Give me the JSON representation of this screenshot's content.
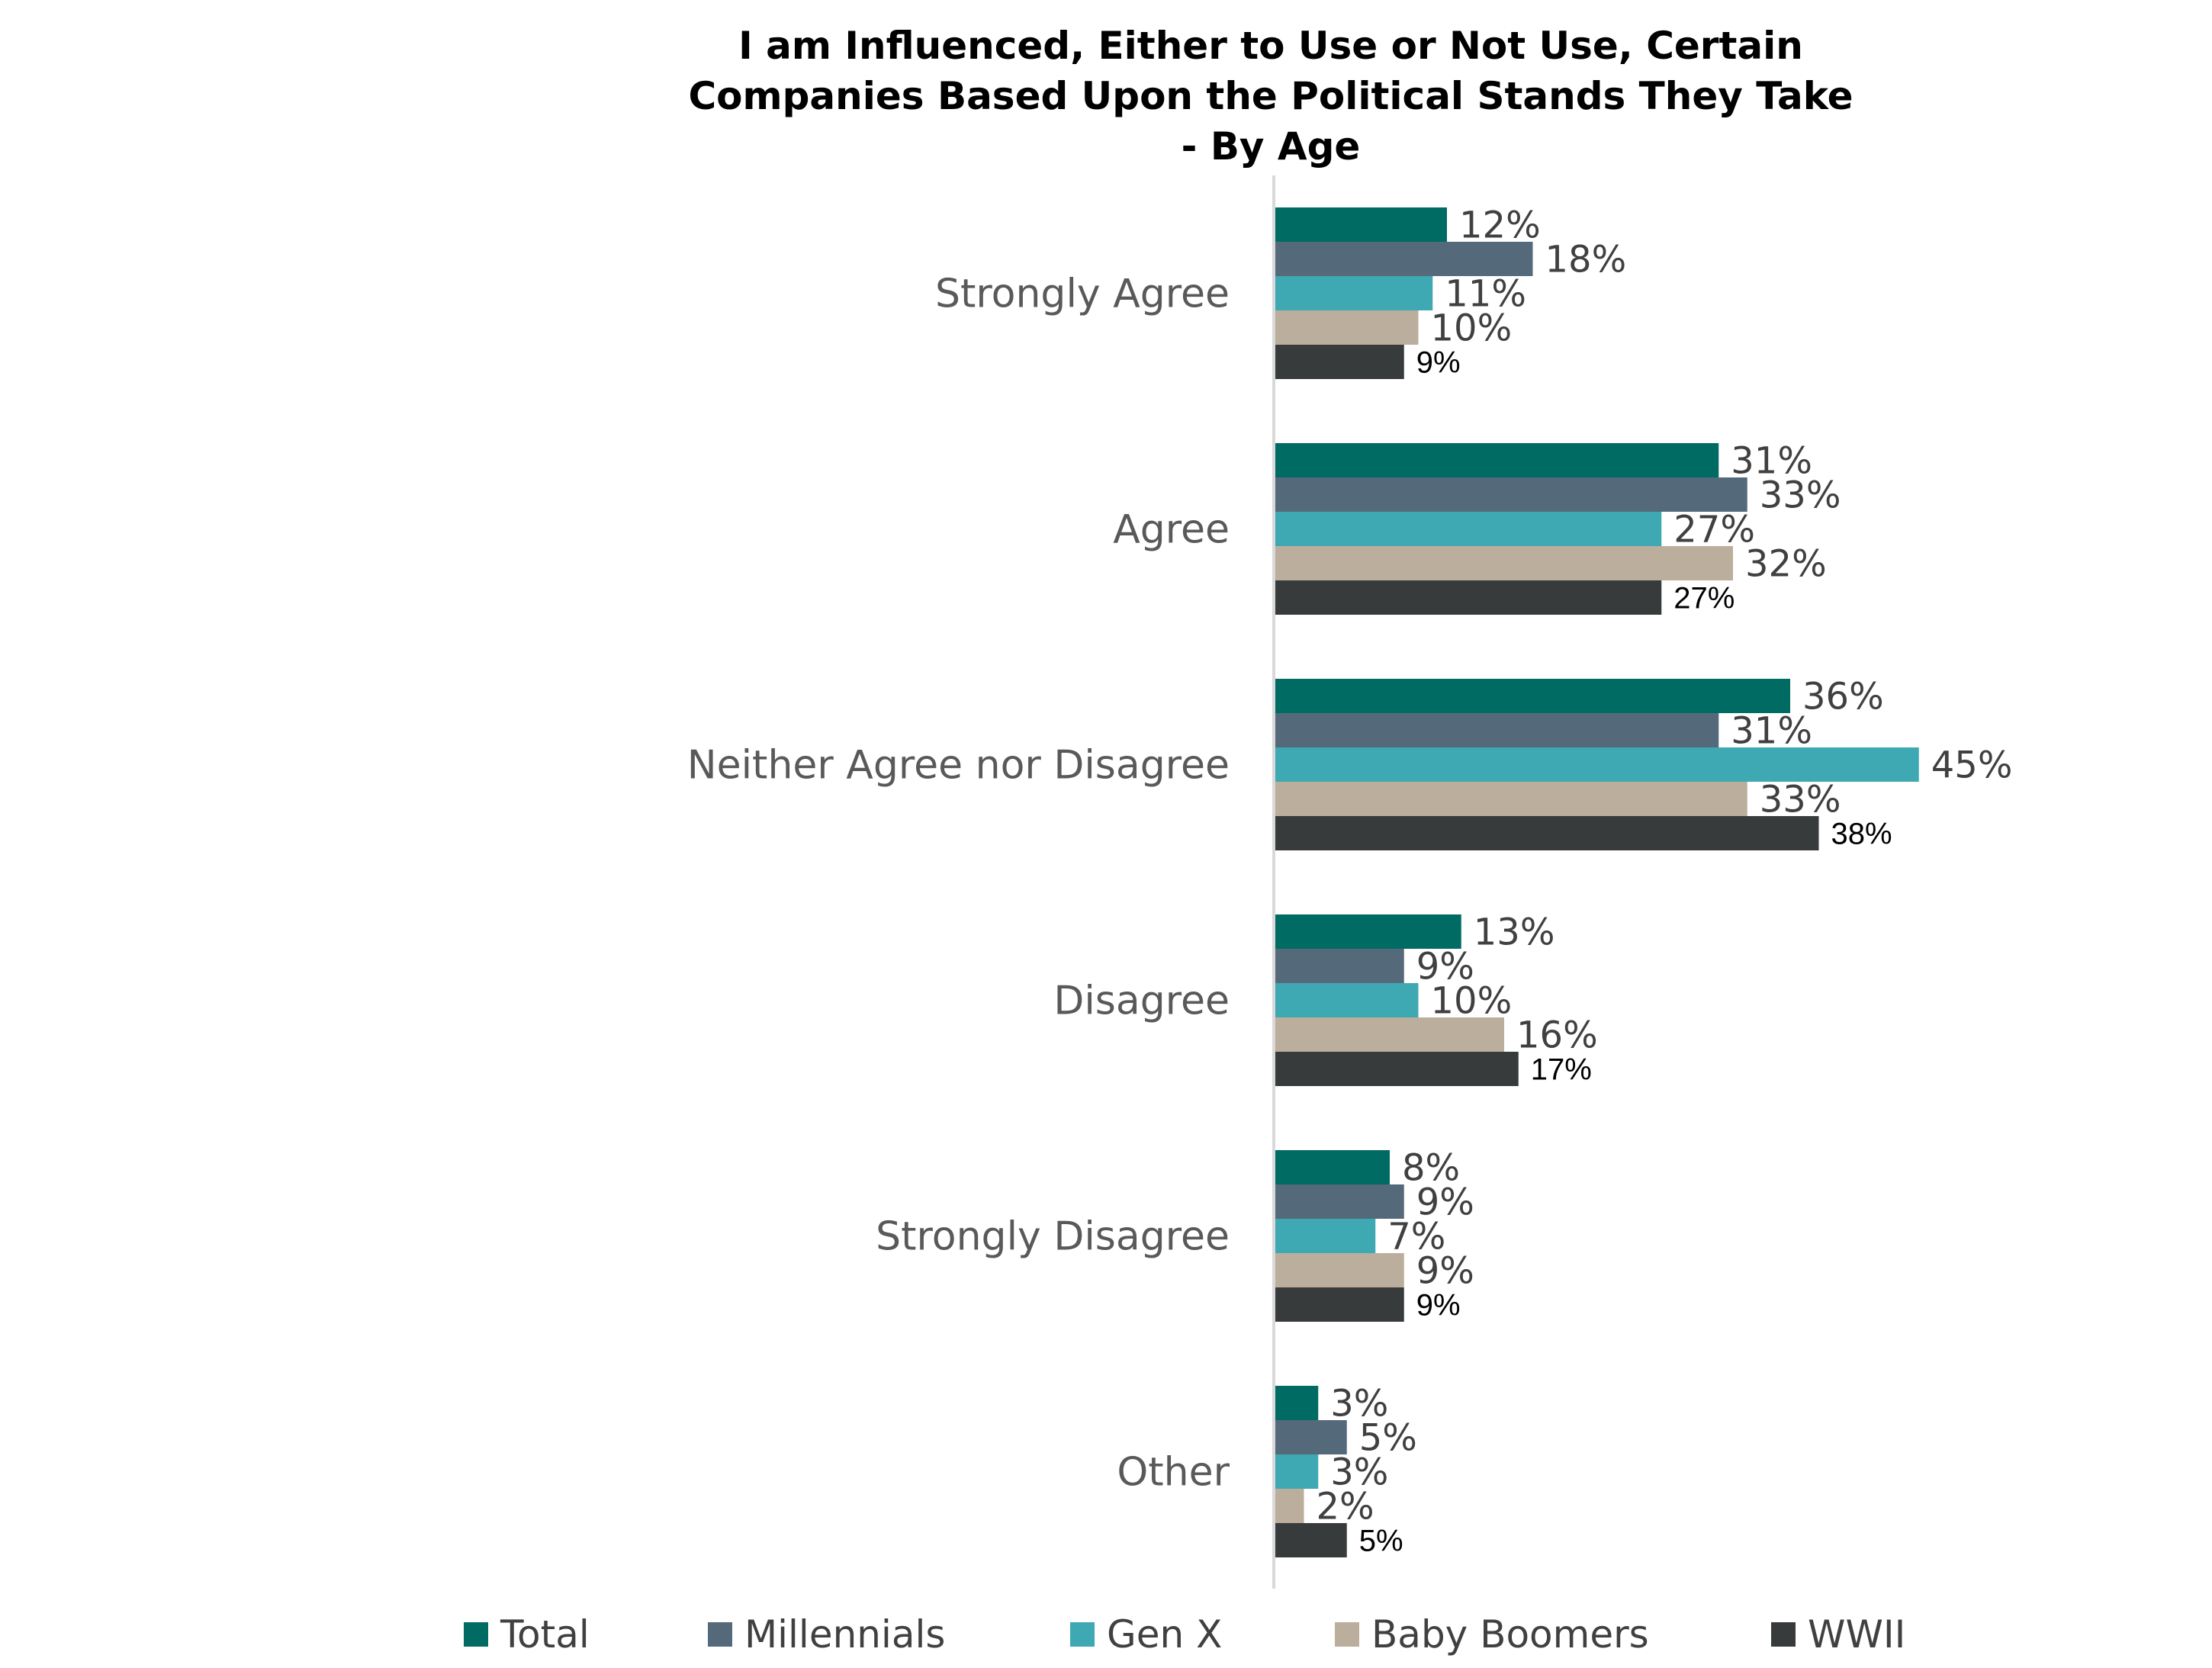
{
  "chart_data": {
    "type": "bar",
    "orientation": "horizontal",
    "title": "I am Influenced, Either to Use or Not Use, Certain Companies Based Upon the Political Stands They Take - By Age",
    "title_lines": [
      "I am Influenced, Either to Use or Not Use, Certain",
      "Companies Based Upon the Political Stands They Take",
      "- By Age"
    ],
    "categories": [
      "Strongly Agree",
      "Agree",
      "Neither Agree nor Disagree",
      "Disagree",
      "Strongly Disagree",
      "Other"
    ],
    "xlim": [
      0,
      50
    ],
    "value_suffix": "%",
    "grid": false,
    "legend_position": "bottom",
    "series": [
      {
        "name": "Total",
        "color": "#006b63",
        "values": [
          12,
          31,
          36,
          13,
          8,
          3
        ]
      },
      {
        "name": "Millennials",
        "color": "#546a7b",
        "values": [
          18,
          33,
          31,
          9,
          9,
          5
        ]
      },
      {
        "name": "Gen X",
        "color": "#3ea8b3",
        "values": [
          11,
          27,
          45,
          10,
          7,
          3
        ]
      },
      {
        "name": "Baby Boomers",
        "color": "#bcae9c",
        "values": [
          10,
          32,
          33,
          16,
          9,
          2
        ]
      },
      {
        "name": "WWII",
        "color": "#373b3c",
        "values": [
          9,
          27,
          38,
          17,
          9,
          5
        ]
      }
    ]
  }
}
